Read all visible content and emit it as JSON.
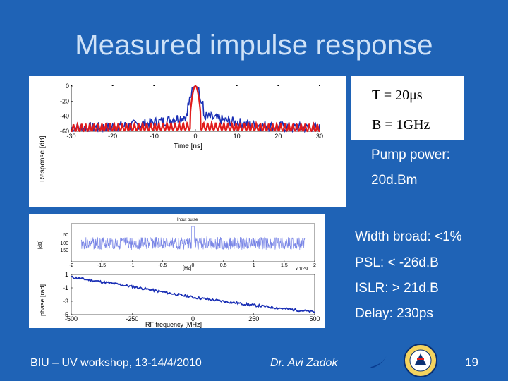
{
  "slide": {
    "title": "Measured impulse response",
    "formula": {
      "t": "T = 20μs",
      "b": "B = 1GHz"
    },
    "pump": {
      "label": "Pump power:",
      "value": "20d.Bm"
    },
    "metrics": [
      "Width broad: <1%",
      "PSL: < -26d.B",
      "ISLR: > 21d.B",
      "Delay: 230ps"
    ],
    "footer": {
      "workshop": "BIU – UV workshop, 13-14/4/2010",
      "author": "Dr. Avi Zadok",
      "page": "19"
    }
  },
  "chart_data": [
    {
      "type": "line",
      "xlabel": "Time [ns]",
      "ylabel": "Response [dB]",
      "xlim": [
        -30,
        30
      ],
      "ylim": [
        -60,
        0
      ],
      "x_ticks": [
        "-30",
        "-20",
        "-10",
        "0",
        "10",
        "20",
        "30"
      ],
      "y_ticks": [
        "0",
        "-20",
        "-40",
        "-60"
      ],
      "series": [
        {
          "color": "#1a2fb5",
          "x": [
            -30,
            -20,
            -10,
            -3,
            -1,
            0,
            1,
            3,
            10,
            20,
            30
          ],
          "y": [
            -55,
            -45,
            -40,
            -30,
            -5,
            0,
            -5,
            -30,
            -42,
            -48,
            -55
          ]
        },
        {
          "color": "#e11b1b",
          "x": [
            -30,
            -10,
            -2,
            -1,
            0,
            1,
            2,
            10,
            30
          ],
          "y": [
            -60,
            -55,
            -40,
            -8,
            0,
            -8,
            -40,
            -55,
            -60
          ]
        }
      ]
    },
    {
      "type": "line",
      "title": "Input pulse",
      "xlabel": "[Hz]",
      "ylabel": "[dB]",
      "xlim": [
        -2,
        2
      ],
      "x_ticks": [
        "-2",
        "-1.5",
        "-1",
        "-0.5",
        "0",
        "0.5",
        "1",
        "1.5",
        "2"
      ],
      "x_multiplier": "x 10^9",
      "y_ticks": [
        "50",
        "100",
        "150"
      ]
    },
    {
      "type": "line",
      "xlabel": "RF frequency [MHz]",
      "ylabel": "phase [rad]",
      "xlim": [
        -500,
        500
      ],
      "ylim": [
        1,
        -5
      ],
      "x_ticks": [
        "-500",
        "-250",
        "0",
        "250",
        "500"
      ],
      "y_ticks": [
        "1",
        "-1",
        "-3",
        "-5"
      ],
      "series": [
        {
          "color": "#1a2fb5",
          "x": [
            -500,
            -250,
            0,
            250,
            500
          ],
          "y": [
            0.6,
            -0.8,
            -2.4,
            -3.6,
            -4.6
          ]
        }
      ]
    }
  ]
}
